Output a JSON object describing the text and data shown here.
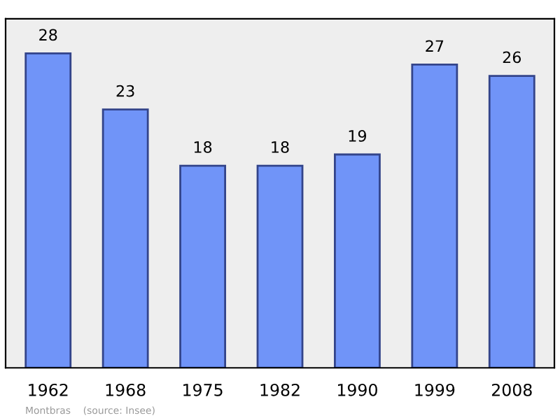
{
  "chart_data": {
    "type": "bar",
    "categories": [
      "1962",
      "1968",
      "1975",
      "1982",
      "1990",
      "1999",
      "2008"
    ],
    "values": [
      28,
      23,
      18,
      18,
      19,
      27,
      26
    ],
    "color": "#7094f8",
    "data_labels": true,
    "grid": false,
    "legend": false,
    "annotations": [
      "Montbras    (source: Insee)"
    ]
  }
}
